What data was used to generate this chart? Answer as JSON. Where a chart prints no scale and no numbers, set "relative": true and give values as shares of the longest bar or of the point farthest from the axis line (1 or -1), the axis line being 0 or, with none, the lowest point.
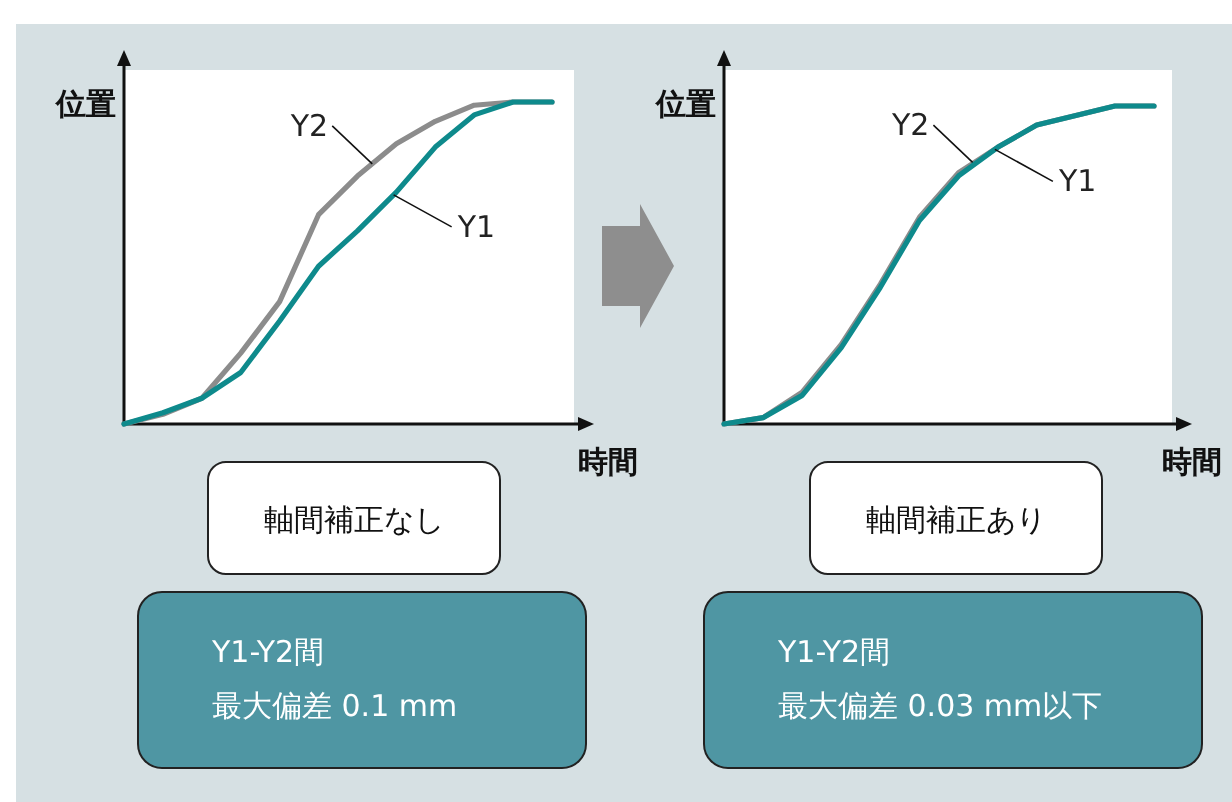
{
  "chart_data": [
    {
      "type": "line",
      "relative": true,
      "xlabel": "時間",
      "ylabel": "位置",
      "legend": false,
      "categories": [
        null,
        null,
        null,
        null,
        null,
        null,
        null,
        null,
        null,
        null,
        null,
        null
      ],
      "series": [
        {
          "name": "Y2",
          "color": "#8c8c8c",
          "values": [
            0,
            0.03,
            0.08,
            0.22,
            0.38,
            0.65,
            0.77,
            0.87,
            0.94,
            0.99,
            1,
            1
          ]
        },
        {
          "name": "Y1",
          "color": "#0e8a8c",
          "values": [
            0,
            0.035,
            0.08,
            0.16,
            0.32,
            0.49,
            0.6,
            0.72,
            0.86,
            0.96,
            1,
            1
          ]
        }
      ],
      "annotations": [
        "軸間補正なし",
        "Y1-Y2間",
        "最大偏差 0.1 mm"
      ]
    },
    {
      "type": "line",
      "relative": true,
      "xlabel": "時間",
      "ylabel": "位置",
      "legend": false,
      "categories": [
        null,
        null,
        null,
        null,
        null,
        null,
        null,
        null,
        null,
        null,
        null,
        null
      ],
      "series": [
        {
          "name": "Y2",
          "color": "#8c8c8c",
          "values": [
            0,
            0.02,
            0.1,
            0.25,
            0.44,
            0.65,
            0.79,
            0.87,
            0.94,
            0.97,
            1,
            1
          ]
        },
        {
          "name": "Y1",
          "color": "#0e8a8c",
          "values": [
            0,
            0.02,
            0.09,
            0.24,
            0.43,
            0.64,
            0.78,
            0.87,
            0.94,
            0.97,
            1,
            1
          ]
        }
      ],
      "annotations": [
        "軸間補正あり",
        "Y1-Y2間",
        "最大偏差 0.03 mm以下"
      ]
    }
  ]
}
